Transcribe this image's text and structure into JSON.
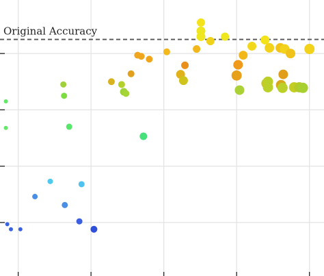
{
  "chart_data": {
    "type": "scatter",
    "title": "",
    "xlabel": "",
    "ylabel": "",
    "xlim": [
      -0.25,
      4.2
    ],
    "ylim": [
      -0.95,
      3.95
    ],
    "x_ticks": [
      0,
      1,
      2,
      3,
      4
    ],
    "y_ticks": [
      0,
      1,
      2,
      3
    ],
    "grid": true,
    "reference_line": {
      "label": "Original Accuracy",
      "y": 3.25,
      "color": "#555555"
    },
    "points": [
      {
        "x": -0.17,
        "y": 2.15,
        "size": 3.0,
        "color": "#66e66a"
      },
      {
        "x": -0.17,
        "y": 1.68,
        "size": 3.0,
        "color": "#66e66a"
      },
      {
        "x": -0.15,
        "y": -0.03,
        "size": 3.0,
        "color": "#3b62df"
      },
      {
        "x": -0.1,
        "y": -0.12,
        "size": 3.0,
        "color": "#3b62df"
      },
      {
        "x": 0.03,
        "y": -0.12,
        "size": 3.0,
        "color": "#3b62df"
      },
      {
        "x": 0.23,
        "y": 0.46,
        "size": 4.0,
        "color": "#4a8ee6"
      },
      {
        "x": 0.44,
        "y": 0.73,
        "size": 4.0,
        "color": "#4fc9ee"
      },
      {
        "x": 0.62,
        "y": 2.45,
        "size": 4.5,
        "color": "#9ed13a"
      },
      {
        "x": 0.63,
        "y": 2.25,
        "size": 4.5,
        "color": "#7cdc42"
      },
      {
        "x": 0.64,
        "y": 0.31,
        "size": 4.5,
        "color": "#4a8ee6"
      },
      {
        "x": 0.7,
        "y": 1.7,
        "size": 4.5,
        "color": "#58e66b"
      },
      {
        "x": 0.84,
        "y": 0.02,
        "size": 4.5,
        "color": "#3b5fe0"
      },
      {
        "x": 0.87,
        "y": 0.68,
        "size": 4.5,
        "color": "#4fc3ee"
      },
      {
        "x": 1.04,
        "y": -0.12,
        "size": 5.0,
        "color": "#2f4fda"
      },
      {
        "x": 1.28,
        "y": 2.5,
        "size": 5.0,
        "color": "#d9b21f"
      },
      {
        "x": 1.42,
        "y": 2.45,
        "size": 5.0,
        "color": "#b3d12a"
      },
      {
        "x": 1.45,
        "y": 2.32,
        "size": 5.5,
        "color": "#9ed13a"
      },
      {
        "x": 1.48,
        "y": 2.29,
        "size": 5.0,
        "color": "#a6d635"
      },
      {
        "x": 1.55,
        "y": 2.64,
        "size": 5.0,
        "color": "#e3a01c"
      },
      {
        "x": 1.64,
        "y": 2.97,
        "size": 5.0,
        "color": "#f0a61c"
      },
      {
        "x": 1.69,
        "y": 2.95,
        "size": 5.0,
        "color": "#f0a61c"
      },
      {
        "x": 1.8,
        "y": 2.9,
        "size": 5.0,
        "color": "#f0a61c"
      },
      {
        "x": 1.72,
        "y": 1.53,
        "size": 5.5,
        "color": "#48e07a"
      },
      {
        "x": 2.04,
        "y": 3.03,
        "size": 5.0,
        "color": "#f4b81c"
      },
      {
        "x": 2.23,
        "y": 2.63,
        "size": 6.5,
        "color": "#e0b21c"
      },
      {
        "x": 2.27,
        "y": 2.52,
        "size": 6.5,
        "color": "#cfc41c"
      },
      {
        "x": 2.29,
        "y": 2.79,
        "size": 5.5,
        "color": "#e8901a"
      },
      {
        "x": 2.45,
        "y": 3.08,
        "size": 5.5,
        "color": "#f2b81b"
      },
      {
        "x": 2.51,
        "y": 3.55,
        "size": 6.0,
        "color": "#f4e21b"
      },
      {
        "x": 2.51,
        "y": 3.4,
        "size": 6.5,
        "color": "#eee61f"
      },
      {
        "x": 2.51,
        "y": 3.3,
        "size": 6.5,
        "color": "#eee61f"
      },
      {
        "x": 2.64,
        "y": 3.22,
        "size": 6.0,
        "color": "#f0d21a"
      },
      {
        "x": 2.84,
        "y": 3.3,
        "size": 6.0,
        "color": "#eee61f"
      },
      {
        "x": 3.0,
        "y": 2.61,
        "size": 7.5,
        "color": "#e6a01a"
      },
      {
        "x": 3.02,
        "y": 2.8,
        "size": 7.0,
        "color": "#ef9a1a"
      },
      {
        "x": 3.04,
        "y": 2.35,
        "size": 7.0,
        "color": "#aad135"
      },
      {
        "x": 3.09,
        "y": 2.97,
        "size": 6.5,
        "color": "#f2b81b"
      },
      {
        "x": 3.21,
        "y": 3.13,
        "size": 6.5,
        "color": "#f2d81b"
      },
      {
        "x": 3.39,
        "y": 3.24,
        "size": 6.5,
        "color": "#f4e21b"
      },
      {
        "x": 3.41,
        "y": 2.47,
        "size": 7.5,
        "color": "#c9c81f"
      },
      {
        "x": 3.43,
        "y": 2.5,
        "size": 7.5,
        "color": "#bcd02a"
      },
      {
        "x": 3.43,
        "y": 2.4,
        "size": 7.5,
        "color": "#bcd02a"
      },
      {
        "x": 3.45,
        "y": 3.1,
        "size": 7.0,
        "color": "#f2d21b"
      },
      {
        "x": 3.6,
        "y": 3.1,
        "size": 7.0,
        "color": "#f2c41a"
      },
      {
        "x": 3.61,
        "y": 2.44,
        "size": 7.5,
        "color": "#d9a81a"
      },
      {
        "x": 3.63,
        "y": 2.39,
        "size": 7.5,
        "color": "#bcd02a"
      },
      {
        "x": 3.64,
        "y": 2.63,
        "size": 7.0,
        "color": "#e09e1a"
      },
      {
        "x": 3.66,
        "y": 3.08,
        "size": 7.0,
        "color": "#f2d21b"
      },
      {
        "x": 3.74,
        "y": 3.0,
        "size": 7.0,
        "color": "#f0c21a"
      },
      {
        "x": 3.79,
        "y": 2.4,
        "size": 7.5,
        "color": "#c4ce22"
      },
      {
        "x": 3.86,
        "y": 2.4,
        "size": 7.5,
        "color": "#b4c92a"
      },
      {
        "x": 3.91,
        "y": 2.39,
        "size": 7.5,
        "color": "#a8d030"
      },
      {
        "x": 4.0,
        "y": 3.08,
        "size": 7.5,
        "color": "#f2d21b"
      }
    ]
  }
}
